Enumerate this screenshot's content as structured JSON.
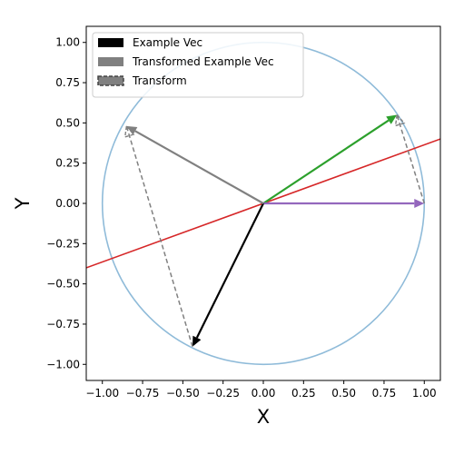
{
  "chart_data": {
    "type": "line",
    "title": "",
    "xlabel": "X",
    "ylabel": "Y",
    "xlim": [
      -1.1,
      1.1
    ],
    "ylim": [
      -1.1,
      1.1
    ],
    "x_ticks": [
      -1.0,
      -0.75,
      -0.5,
      -0.25,
      0.0,
      0.25,
      0.5,
      0.75,
      1.0
    ],
    "y_ticks": [
      -1.0,
      -0.75,
      -0.5,
      -0.25,
      0.0,
      0.25,
      0.5,
      0.75,
      1.0
    ],
    "x_tick_labels": [
      "−1.00",
      "−0.75",
      "−0.50",
      "−0.25",
      "0.00",
      "0.25",
      "0.50",
      "0.75",
      "1.00"
    ],
    "y_tick_labels": [
      "−1.00",
      "−0.75",
      "−0.50",
      "−0.25",
      "0.00",
      "0.25",
      "0.50",
      "0.75",
      "1.00"
    ],
    "grid": false,
    "legend": {
      "position": "top-left",
      "entries": [
        {
          "label": "Example Vec",
          "color": "#000000",
          "style": "solid"
        },
        {
          "label": "Transformed Example Vec",
          "color": "#808080",
          "style": "solid"
        },
        {
          "label": "Transform",
          "color": "#808080",
          "style": "dashed"
        }
      ]
    },
    "unit_circle": {
      "radius": 1.0,
      "color": "#8fbbd9"
    },
    "line": {
      "slope": 0.3639,
      "color": "#d62728"
    },
    "vectors": [
      {
        "role": "green-vector",
        "from": [
          0,
          0
        ],
        "to": [
          0.83,
          0.55
        ],
        "color": "#2ca02c",
        "style": "solid"
      },
      {
        "role": "purple-vector",
        "from": [
          0,
          0
        ],
        "to": [
          1.0,
          0.0
        ],
        "color": "#9467bd",
        "style": "solid"
      },
      {
        "role": "example-vec",
        "from": [
          0,
          0
        ],
        "to": [
          -0.44,
          -0.89
        ],
        "color": "#000000",
        "style": "solid"
      },
      {
        "role": "transformed-example-vec",
        "from": [
          0,
          0
        ],
        "to": [
          -0.85,
          0.48
        ],
        "color": "#808080",
        "style": "solid"
      },
      {
        "role": "transform-arrow-1",
        "from": [
          -0.44,
          -0.89
        ],
        "to": [
          -0.85,
          0.48
        ],
        "color": "#808080",
        "style": "dashed"
      },
      {
        "role": "transform-arrow-2",
        "from": [
          1.0,
          0.0
        ],
        "to": [
          0.83,
          0.55
        ],
        "color": "#808080",
        "style": "dashed"
      }
    ]
  }
}
